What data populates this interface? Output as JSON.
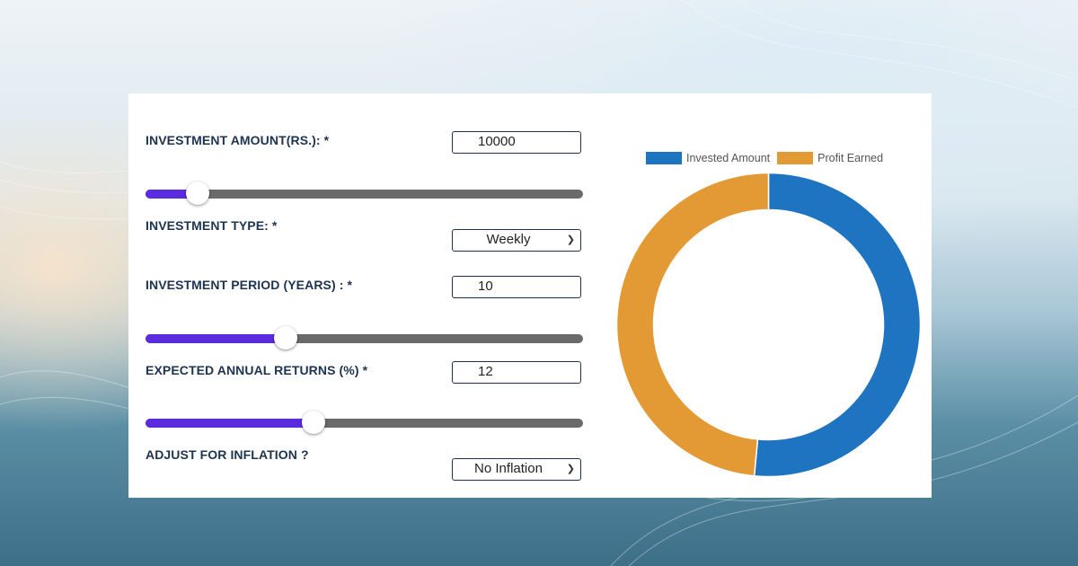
{
  "form": {
    "amount": {
      "label": "INVESTMENT AMOUNT(RS.): *",
      "value": "10000",
      "slider_fraction": 0.12
    },
    "type": {
      "label": "INVESTMENT TYPE: *",
      "selected": "Weekly"
    },
    "period": {
      "label": "INVESTMENT PERIOD (YEARS) : *",
      "value": "10",
      "slider_fraction": 0.32
    },
    "returns": {
      "label": "EXPECTED ANNUAL RETURNS (%) *",
      "value": "12",
      "slider_fraction": 0.385
    },
    "inflation": {
      "label": "ADJUST FOR INFLATION ?",
      "selected": "No Inflation"
    }
  },
  "icons": {
    "select_chevron": "chevron-down-icon"
  },
  "colors": {
    "invested": "#1f74c1",
    "profit": "#e39a34",
    "slider_fill": "#5b2be0",
    "slider_track": "#6a6a6a",
    "label_text": "#1d3450"
  },
  "chart_data": {
    "type": "pie",
    "variant": "donut",
    "categories": [
      "Invested Amount",
      "Profit Earned"
    ],
    "values": [
      51.5,
      48.5
    ],
    "legend_placement": "top",
    "start_angle_deg": 0
  }
}
